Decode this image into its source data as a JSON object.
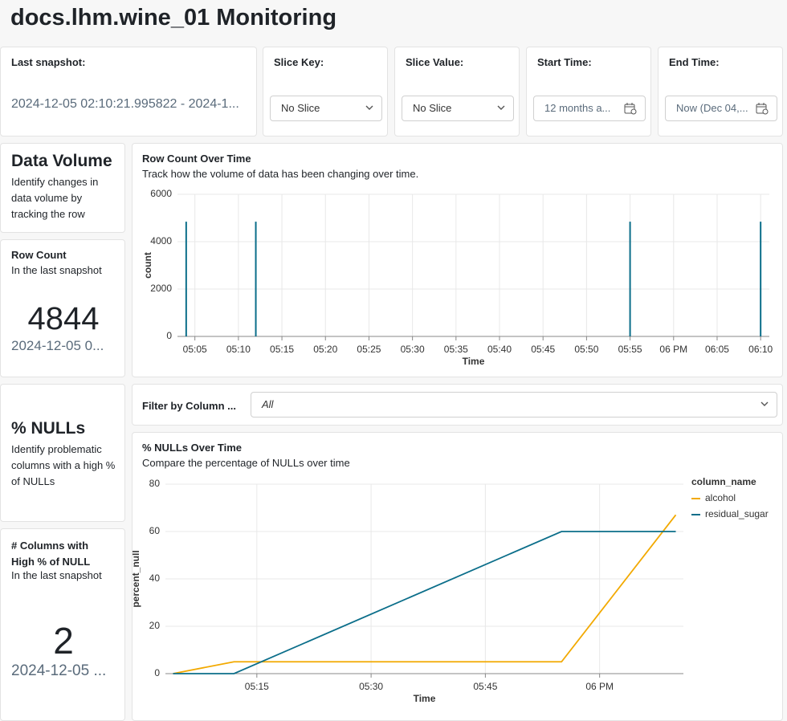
{
  "header": {
    "title": "docs.lhm.wine_01 Monitoring"
  },
  "filters": {
    "last_snapshot": {
      "label": "Last snapshot:",
      "value": "2024-12-05 02:10:21.995822 - 2024-1..."
    },
    "slice_key": {
      "label": "Slice Key:",
      "value": "No Slice"
    },
    "slice_value": {
      "label": "Slice Value:",
      "value": "No Slice"
    },
    "start_time": {
      "label": "Start Time:",
      "value": "12 months a..."
    },
    "end_time": {
      "label": "End Time:",
      "value": "Now (Dec 04,..."
    }
  },
  "data_volume": {
    "title": "Data Volume",
    "description": "Identify changes in data volume by tracking the row"
  },
  "row_count": {
    "title": "Row Count",
    "subtitle": "In the last snapshot",
    "value": 4844,
    "date": "2024-12-05 0..."
  },
  "column_filter": {
    "label": "Filter by Column ...",
    "value": "All"
  },
  "nulls": {
    "title": "% NULLs",
    "description": "Identify problematic columns with a high % of NULLs"
  },
  "null_columns": {
    "title": "# Columns with High % of NULL",
    "subtitle": "In the last snapshot",
    "value": 2,
    "date": "2024-12-05 ..."
  },
  "chart_data": [
    {
      "type": "bar",
      "title": "Row Count Over Time",
      "subtitle": "Track how the volume of data has been changing over time.",
      "x_label": "Time",
      "y_label": "count",
      "x": [
        "05:04",
        "05:12",
        "05:55",
        "06:10"
      ],
      "values": [
        4844,
        4844,
        4844,
        4844
      ],
      "color": "#0b6e8a",
      "xlim": [
        "05:03",
        "06:11"
      ],
      "xticks": [
        "05:05",
        "05:10",
        "05:15",
        "05:20",
        "05:25",
        "05:30",
        "05:35",
        "05:40",
        "05:45",
        "05:50",
        "05:55",
        {
          "value": "06:00",
          "label": "06 PM"
        },
        "06:05",
        "06:10"
      ],
      "ylim": [
        0,
        6000
      ],
      "yticks": [
        0,
        2000,
        4000,
        6000
      ],
      "grid": true
    },
    {
      "type": "line",
      "title": "% NULLs Over Time",
      "subtitle": "Compare the percentage of NULLs over time",
      "x_label": "Time",
      "y_label": "percent_null",
      "legend_title": "column_name",
      "legend": "right",
      "x": [
        "05:04",
        "05:12",
        "05:55",
        "06:10"
      ],
      "series": [
        {
          "name": "alcohol",
          "color": "#f2a900",
          "values": [
            0,
            5,
            5,
            67
          ]
        },
        {
          "name": "residual_sugar",
          "color": "#0b6e8a",
          "values": [
            0,
            0,
            60,
            60
          ]
        }
      ],
      "xlim": [
        "05:03",
        "06:11"
      ],
      "xticks": [
        "05:15",
        "05:30",
        "05:45",
        {
          "value": "06:00",
          "label": "06 PM"
        }
      ],
      "ylim": [
        0,
        80
      ],
      "yticks": [
        0,
        20,
        40,
        60,
        80
      ],
      "grid": true
    }
  ]
}
